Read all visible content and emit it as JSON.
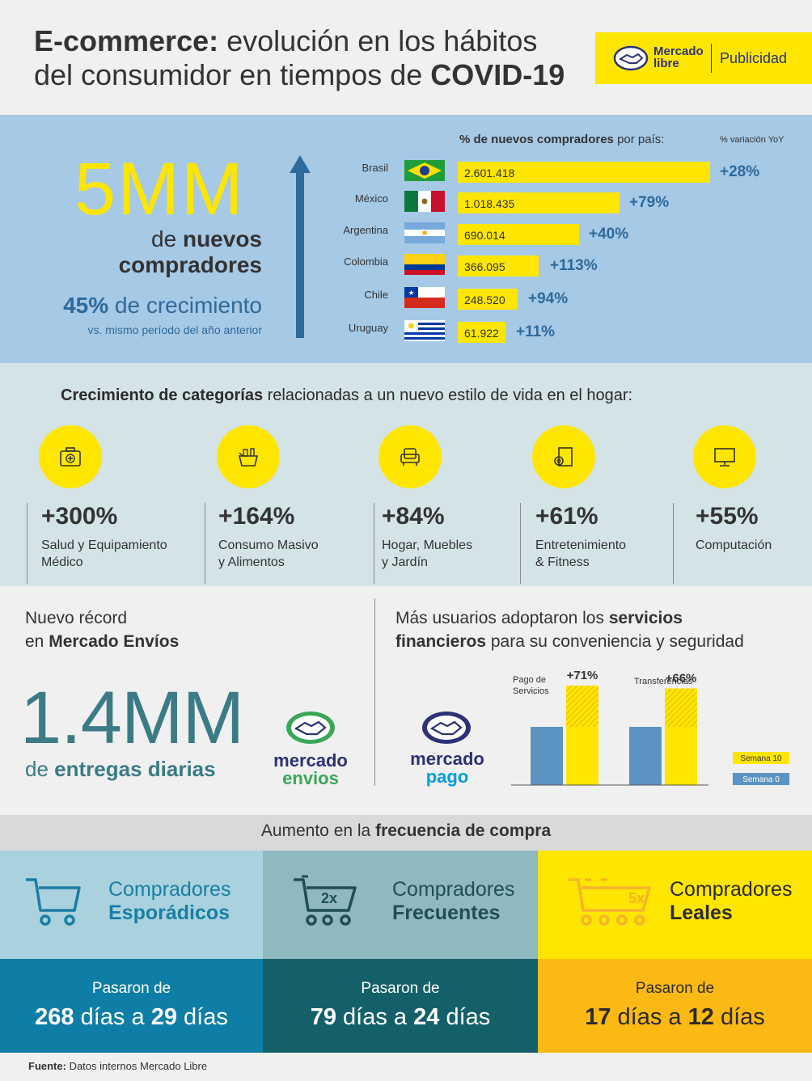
{
  "header": {
    "title_bold_1": "E-commerce:",
    "title_rest_1": " evolución en los hábitos",
    "title_rest_2": "del consumidor en tiempos de ",
    "title_bold_2": "COVID-19",
    "logo_line1": "Mercado",
    "logo_line2": "libre",
    "logo_tag": "Publicidad"
  },
  "buyers": {
    "big_number": "5MM",
    "de": "de ",
    "nuevos": "nuevos",
    "compradores": "compradores",
    "growth_pct": "45%",
    "growth_text": " de crecimiento",
    "growth_sub": "vs. mismo período del año anterior",
    "chart_title_bold": "% de nuevos compradores",
    "chart_title_rest": " por país:",
    "yoy_label": "% variación YoY",
    "countries": [
      {
        "name": "Brasil",
        "value": "2.601.418",
        "pct": "+28%"
      },
      {
        "name": "México",
        "value": "1.018.435",
        "pct": "+79%"
      },
      {
        "name": "Argentina",
        "value": "690.014",
        "pct": "+40%"
      },
      {
        "name": "Colombia",
        "value": "366.095",
        "pct": "+113%"
      },
      {
        "name": "Chile",
        "value": "248.520",
        "pct": "+94%"
      },
      {
        "name": "Uruguay",
        "value": "61.922",
        "pct": "+11%"
      }
    ]
  },
  "categories": {
    "title_bold": "Crecimiento de categorías",
    "title_rest": " relacionadas a un nuevo estilo de vida en el hogar:",
    "items": [
      {
        "pct": "+300%",
        "label1": "Salud y Equipamiento",
        "label2": "Médico",
        "icon": "medical-kit-icon"
      },
      {
        "pct": "+164%",
        "label1": "Consumo Masivo",
        "label2": "y Alimentos",
        "icon": "grocery-basket-icon"
      },
      {
        "pct": "+84%",
        "label1": "Hogar, Muebles",
        "label2": "y Jardín",
        "icon": "armchair-icon"
      },
      {
        "pct": "+61%",
        "label1": "Entretenimiento",
        "label2": "& Fitness",
        "icon": "yoga-mat-icon"
      },
      {
        "pct": "+55%",
        "label1": "Computación",
        "label2": "",
        "icon": "monitor-icon"
      }
    ]
  },
  "envios": {
    "title_1": "Nuevo récord",
    "title_2a": "en ",
    "title_2b": "Mercado Envíos",
    "big_number": "1.4MM",
    "sub_a": "de ",
    "sub_b": "entregas diarias",
    "logo_line1": "mercado",
    "logo_line2": "envios"
  },
  "finance": {
    "title_1a": "Más usuarios adoptaron los ",
    "title_1b": "servicios",
    "title_2a": "financieros",
    "title_2b": " para su conveniencia y seguridad",
    "logo_line1": "mercado",
    "logo_line2": "pago",
    "legend": [
      "Semana 10",
      "Semana 0"
    ],
    "colors": {
      "semana10": "#ffe600",
      "semana0": "#5b93c2"
    }
  },
  "chart_data": {
    "type": "bar",
    "categories": [
      "Pago de Servicios",
      "Transferencias"
    ],
    "series": [
      {
        "name": "Semana 0",
        "values": [
          100,
          100
        ]
      },
      {
        "name": "Semana 10",
        "values": [
          171,
          166
        ]
      }
    ],
    "annotations": [
      "+71%",
      "+66%"
    ],
    "category_labels": [
      [
        "Pago de",
        "Servicios"
      ],
      [
        "Transferencias"
      ]
    ]
  },
  "frequency": {
    "title_a": "Aumento en la ",
    "title_b": "frecuencia de compra",
    "groups": [
      {
        "line1": "Compradores",
        "line2": "Esporádicos",
        "badge": "",
        "pasaron": "Pasaron de",
        "from": "268",
        "from_unit": " días a ",
        "to": "29",
        "to_unit": " días"
      },
      {
        "line1": "Compradores",
        "line2": "Frecuentes",
        "badge": "2x",
        "pasaron": "Pasaron de",
        "from": "79",
        "from_unit": " días a ",
        "to": "24",
        "to_unit": " días"
      },
      {
        "line1": "Compradores",
        "line2": "Leales",
        "badge": "5x",
        "pasaron": "Pasaron de",
        "from": "17",
        "from_unit": " días a ",
        "to": "12",
        "to_unit": " días"
      }
    ]
  },
  "footer": {
    "label": "Fuente:",
    "text": " Datos internos Mercado Libre"
  }
}
